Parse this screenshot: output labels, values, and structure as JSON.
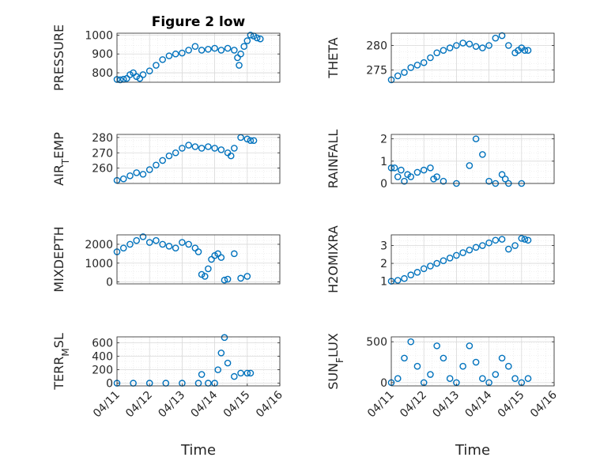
{
  "figure_title": "Figure 2 low",
  "xlabel": "Time",
  "marker_color": "#0072BD",
  "chart_data": [
    {
      "type": "scatter",
      "title": "Figure 2 low",
      "ylabel": "PRESSURE",
      "ylim": [
        750,
        1010
      ],
      "yticks": [
        800,
        900,
        1000
      ],
      "yticklabels": [
        "800",
        "900",
        "1000"
      ],
      "xlim": [
        0,
        5
      ],
      "xticks": [],
      "xticklabels": [],
      "grid": true,
      "minor_grid": true,
      "x": [
        0,
        0.1,
        0.2,
        0.3,
        0.4,
        0.5,
        0.6,
        0.7,
        0.8,
        1.0,
        1.2,
        1.4,
        1.6,
        1.8,
        2.0,
        2.2,
        2.4,
        2.6,
        2.8,
        3.0,
        3.2,
        3.4,
        3.6,
        3.7,
        3.75,
        3.8,
        3.9,
        4.0,
        4.1,
        4.2,
        4.3,
        4.4
      ],
      "y": [
        765,
        763,
        766,
        770,
        790,
        800,
        780,
        770,
        790,
        810,
        840,
        870,
        890,
        900,
        905,
        920,
        940,
        920,
        925,
        930,
        920,
        930,
        920,
        880,
        840,
        900,
        940,
        970,
        1000,
        995,
        985,
        980
      ]
    },
    {
      "type": "scatter",
      "title": "",
      "ylabel": "THETA",
      "ylim": [
        272.5,
        282.5
      ],
      "yticks": [
        275,
        280
      ],
      "yticklabels": [
        "275",
        "280"
      ],
      "xlim": [
        0,
        5
      ],
      "xticks": [],
      "xticklabels": [],
      "grid": true,
      "minor_grid": true,
      "x": [
        0,
        0.2,
        0.4,
        0.6,
        0.8,
        1.0,
        1.2,
        1.4,
        1.6,
        1.8,
        2.0,
        2.2,
        2.4,
        2.6,
        2.8,
        3.0,
        3.2,
        3.4,
        3.6,
        3.8,
        3.9,
        4.0,
        4.1,
        4.2
      ],
      "y": [
        273,
        273.8,
        274.5,
        275.5,
        276,
        276.5,
        277.5,
        278.5,
        279,
        279.5,
        280,
        280.5,
        280.3,
        279.8,
        279.5,
        280,
        281.5,
        282,
        280,
        278.5,
        279,
        279.5,
        279,
        279
      ]
    },
    {
      "type": "scatter",
      "title": "",
      "ylabel": "AIR_TEMP",
      "ylim": [
        250,
        282
      ],
      "yticks": [
        260,
        270,
        280
      ],
      "yticklabels": [
        "260",
        "270",
        "280"
      ],
      "xlim": [
        0,
        5
      ],
      "xticks": [],
      "xticklabels": [],
      "grid": true,
      "minor_grid": true,
      "x": [
        0,
        0.2,
        0.4,
        0.6,
        0.8,
        1.0,
        1.2,
        1.4,
        1.6,
        1.8,
        2.0,
        2.2,
        2.4,
        2.6,
        2.8,
        3.0,
        3.2,
        3.4,
        3.5,
        3.6,
        3.8,
        4.0,
        4.1,
        4.2
      ],
      "y": [
        252,
        253,
        255,
        257,
        256,
        259,
        262,
        265,
        268,
        270,
        273,
        275,
        274,
        273,
        274,
        273,
        272,
        270,
        268,
        273,
        280,
        279,
        278,
        278
      ]
    },
    {
      "type": "scatter",
      "title": "",
      "ylabel": "RAINFALL",
      "ylim": [
        0,
        2.2
      ],
      "yticks": [
        0,
        1,
        2
      ],
      "yticklabels": [
        "0",
        "1",
        "2"
      ],
      "xlim": [
        0,
        5
      ],
      "xticks": [],
      "xticklabels": [],
      "grid": true,
      "minor_grid": true,
      "x": [
        0,
        0.1,
        0.2,
        0.3,
        0.4,
        0.5,
        0.6,
        0.8,
        1.0,
        1.2,
        1.3,
        1.4,
        1.6,
        2.0,
        2.4,
        2.6,
        2.8,
        3.0,
        3.2,
        3.4,
        3.5,
        3.6,
        4.0
      ],
      "y": [
        0.7,
        0.7,
        0.3,
        0.6,
        0.1,
        0.4,
        0.3,
        0.5,
        0.6,
        0.7,
        0.2,
        0.3,
        0.1,
        0,
        0.8,
        2.0,
        1.3,
        0.1,
        0,
        0.4,
        0.2,
        0,
        0
      ]
    },
    {
      "type": "scatter",
      "title": "",
      "ylabel": "MIXDEPTH",
      "ylim": [
        -100,
        2500
      ],
      "yticks": [
        0,
        1000,
        2000
      ],
      "yticklabels": [
        "0",
        "1000",
        "2000"
      ],
      "xlim": [
        0,
        5
      ],
      "xticks": [],
      "xticklabels": [],
      "grid": true,
      "minor_grid": true,
      "x": [
        0,
        0.2,
        0.4,
        0.6,
        0.8,
        1.0,
        1.2,
        1.4,
        1.6,
        1.8,
        2.0,
        2.2,
        2.4,
        2.5,
        2.6,
        2.7,
        2.8,
        2.9,
        3.0,
        3.1,
        3.2,
        3.3,
        3.4,
        3.6,
        3.8,
        4.0
      ],
      "y": [
        1600,
        1800,
        2000,
        2200,
        2400,
        2100,
        2200,
        2000,
        1900,
        1800,
        2100,
        2000,
        1800,
        1600,
        400,
        300,
        700,
        1200,
        1400,
        1500,
        1300,
        100,
        150,
        1500,
        200,
        300
      ]
    },
    {
      "type": "scatter",
      "title": "",
      "ylabel": "H2OMIXRA",
      "ylim": [
        0.85,
        3.6
      ],
      "yticks": [
        1,
        2,
        3
      ],
      "yticklabels": [
        "1",
        "2",
        "3"
      ],
      "xlim": [
        0,
        5
      ],
      "xticks": [],
      "xticklabels": [],
      "grid": true,
      "minor_grid": true,
      "x": [
        0,
        0.2,
        0.4,
        0.6,
        0.8,
        1.0,
        1.2,
        1.4,
        1.6,
        1.8,
        2.0,
        2.2,
        2.4,
        2.6,
        2.8,
        3.0,
        3.2,
        3.4,
        3.6,
        3.8,
        4.0,
        4.1,
        4.2
      ],
      "y": [
        1.0,
        1.05,
        1.15,
        1.35,
        1.5,
        1.7,
        1.85,
        2.0,
        2.15,
        2.3,
        2.45,
        2.6,
        2.75,
        2.9,
        3.0,
        3.15,
        3.3,
        3.35,
        2.8,
        3.0,
        3.4,
        3.35,
        3.3
      ]
    },
    {
      "type": "scatter",
      "title": "",
      "ylabel": "TERR_MSL",
      "ylim": [
        -40,
        690
      ],
      "yticks": [
        0,
        200,
        400,
        600
      ],
      "yticklabels": [
        "0",
        "200",
        "400",
        "600"
      ],
      "xlim": [
        0,
        5
      ],
      "xticks": [
        0,
        1,
        2,
        3,
        4,
        5
      ],
      "xticklabels": [
        "04/11",
        "04/12",
        "04/13",
        "04/14",
        "04/15",
        "04/16"
      ],
      "grid": true,
      "minor_grid": true,
      "x": [
        0,
        0.5,
        1.0,
        1.5,
        2.0,
        2.5,
        2.6,
        2.8,
        3.0,
        3.1,
        3.2,
        3.3,
        3.4,
        3.6,
        3.8,
        4.0,
        4.1
      ],
      "y": [
        0,
        0,
        0,
        0,
        0,
        0,
        130,
        0,
        0,
        200,
        450,
        680,
        300,
        100,
        150,
        150,
        150
      ]
    },
    {
      "type": "scatter",
      "title": "",
      "ylabel": "SUN_FLUX",
      "ylim": [
        -40,
        560
      ],
      "yticks": [
        0,
        500
      ],
      "yticklabels": [
        "0",
        "500"
      ],
      "xlim": [
        0,
        5
      ],
      "xticks": [
        0,
        1,
        2,
        3,
        4,
        5
      ],
      "xticklabels": [
        "04/11",
        "04/12",
        "04/13",
        "04/14",
        "04/15",
        "04/16"
      ],
      "grid": true,
      "minor_grid": true,
      "x": [
        0,
        0.2,
        0.4,
        0.6,
        0.8,
        1.0,
        1.2,
        1.4,
        1.6,
        1.8,
        2.0,
        2.2,
        2.4,
        2.6,
        2.8,
        3.0,
        3.2,
        3.4,
        3.6,
        3.8,
        4.0,
        4.2
      ],
      "y": [
        0,
        50,
        300,
        500,
        200,
        0,
        100,
        450,
        300,
        50,
        0,
        200,
        450,
        250,
        50,
        0,
        100,
        300,
        200,
        50,
        0,
        50
      ]
    }
  ]
}
